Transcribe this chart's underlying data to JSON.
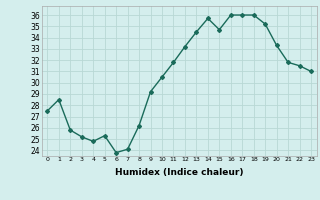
{
  "x": [
    0,
    1,
    2,
    3,
    4,
    5,
    6,
    7,
    8,
    9,
    10,
    11,
    12,
    13,
    14,
    15,
    16,
    17,
    18,
    19,
    20,
    21,
    22,
    23
  ],
  "y": [
    27.5,
    28.5,
    25.8,
    25.2,
    24.8,
    25.3,
    23.8,
    24.1,
    26.2,
    29.2,
    30.5,
    31.8,
    33.2,
    34.5,
    35.7,
    34.7,
    36.0,
    36.0,
    36.0,
    35.2,
    33.3,
    31.8,
    31.5,
    31.0
  ],
  "title": "",
  "xlabel": "Humidex (Indice chaleur)",
  "ylabel": "",
  "xlim": [
    -0.5,
    23.5
  ],
  "ylim": [
    23.5,
    36.8
  ],
  "yticks": [
    24,
    25,
    26,
    27,
    28,
    29,
    30,
    31,
    32,
    33,
    34,
    35,
    36
  ],
  "xticks": [
    0,
    1,
    2,
    3,
    4,
    5,
    6,
    7,
    8,
    9,
    10,
    11,
    12,
    13,
    14,
    15,
    16,
    17,
    18,
    19,
    20,
    21,
    22,
    23
  ],
  "line_color": "#1a6b5a",
  "bg_color": "#d4eeed",
  "grid_color": "#b8d8d5",
  "marker": "D",
  "marker_size": 2.0,
  "line_width": 1.0
}
